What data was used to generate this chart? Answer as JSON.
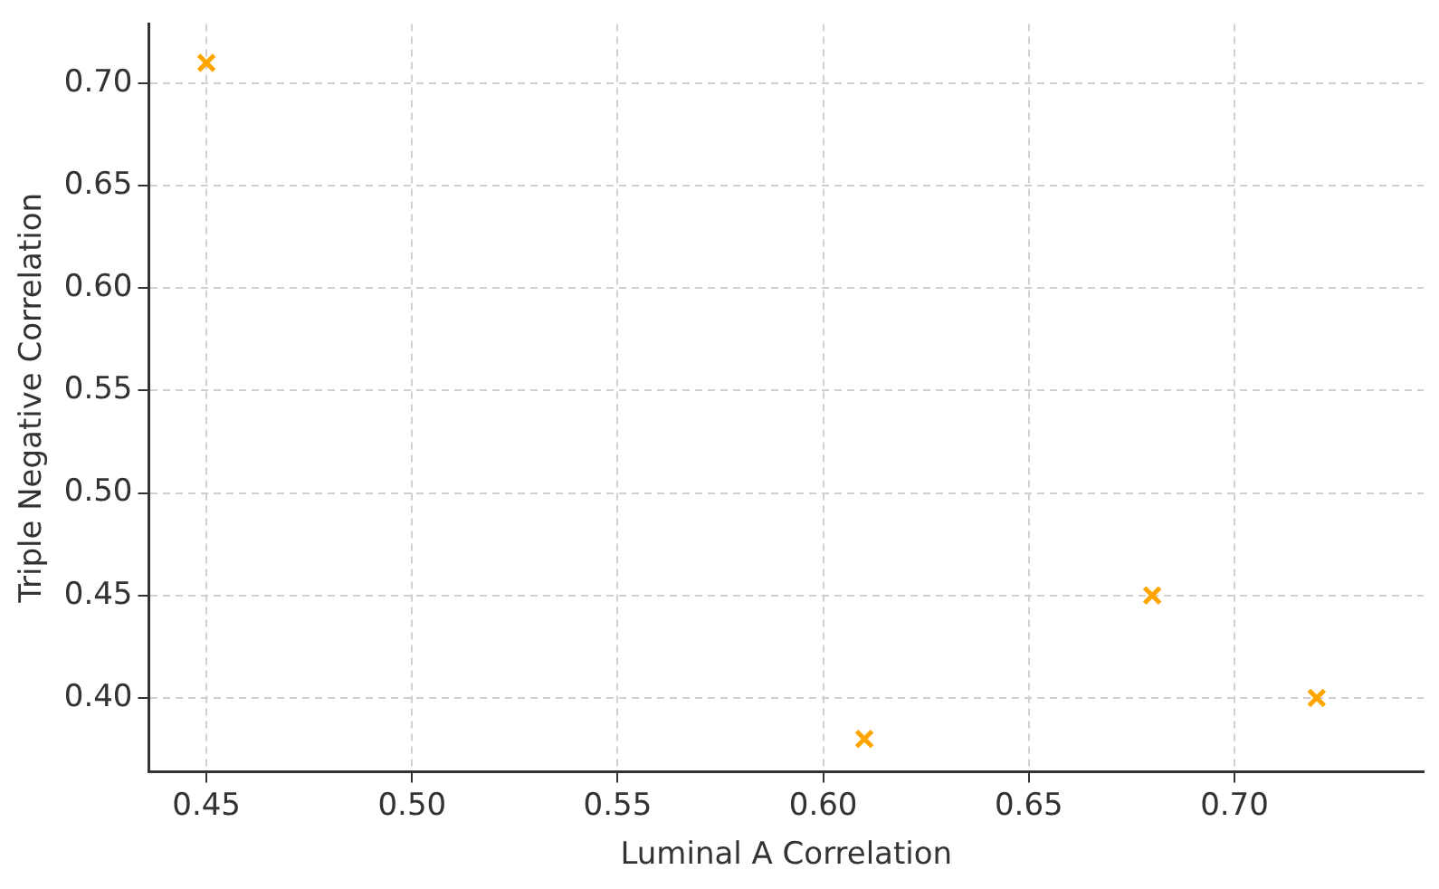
{
  "chart_data": {
    "type": "scatter",
    "xlabel": "Luminal A Correlation",
    "ylabel": "Triple Negative Correlation",
    "x": [
      0.45,
      0.61,
      0.68,
      0.72
    ],
    "series": [
      {
        "color": "#ffa500",
        "values": [
          0.71,
          0.38,
          0.45,
          0.4
        ]
      }
    ],
    "xlim": [
      0.436,
      0.746
    ],
    "xticks": [
      0.45,
      {
        "value": 0.5,
        "label": "0.50"
      },
      0.55,
      {
        "value": 0.6,
        "label": "0.60"
      },
      0.65,
      {
        "value": 0.7,
        "label": "0.70"
      }
    ],
    "ylim": [
      0.364,
      0.729
    ],
    "yticks": [
      {
        "value": 0.4,
        "label": "0.40"
      },
      0.45,
      {
        "value": 0.5,
        "label": "0.50"
      },
      0.55,
      {
        "value": 0.6,
        "label": "0.60"
      },
      0.65,
      {
        "value": 0.7,
        "label": "0.70"
      }
    ],
    "grid": true,
    "legend": false,
    "marker": "cross"
  }
}
